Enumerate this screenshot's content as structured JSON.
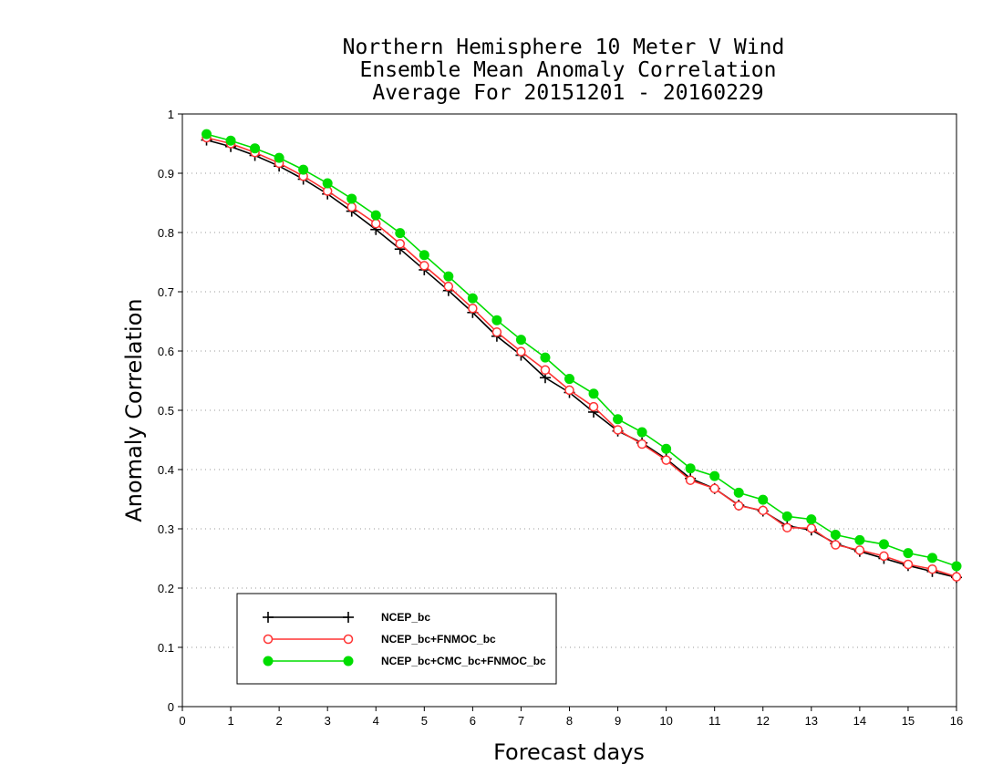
{
  "chart_data": {
    "type": "line",
    "title": [
      "Northern Hemisphere 10 Meter V Wind",
      "Ensemble Mean Anomaly Correlation",
      "Average For 20151201 - 20160229"
    ],
    "xlabel": "Forecast days",
    "ylabel": "Anomaly Correlation",
    "xlim": [
      0,
      16
    ],
    "ylim": [
      0,
      1
    ],
    "xticks": [
      "0",
      "1",
      "2",
      "3",
      "4",
      "5",
      "6",
      "7",
      "8",
      "9",
      "10",
      "11",
      "12",
      "13",
      "14",
      "15",
      "16"
    ],
    "yticks": [
      "0",
      "0.1",
      "0.2",
      "0.3",
      "0.4",
      "0.5",
      "0.6",
      "0.7",
      "0.8",
      "0.9",
      "1"
    ],
    "grid": "horizontal dotted",
    "legend_position": "bottom-left",
    "x": [
      0.5,
      1,
      1.5,
      2,
      2.5,
      3,
      3.5,
      4,
      4.5,
      5,
      5.5,
      6,
      6.5,
      7,
      7.5,
      8,
      8.5,
      9,
      9.5,
      10,
      10.5,
      11,
      11.5,
      12,
      12.5,
      13,
      13.5,
      14,
      14.5,
      15,
      15.5,
      16
    ],
    "series": [
      {
        "name": "NCEP_bc",
        "color": "#000000",
        "marker": "plus",
        "values": [
          0.956,
          0.945,
          0.93,
          0.912,
          0.89,
          0.865,
          0.836,
          0.805,
          0.772,
          0.737,
          0.702,
          0.665,
          0.625,
          0.593,
          0.555,
          0.53,
          0.497,
          0.465,
          0.445,
          0.418,
          0.385,
          0.368,
          0.34,
          0.33,
          0.305,
          0.298,
          0.275,
          0.262,
          0.25,
          0.238,
          0.228,
          0.218
        ]
      },
      {
        "name": "NCEP_bc+FNMOC_bc",
        "color": "#ff3333",
        "marker": "open-circle",
        "values": [
          0.96,
          0.95,
          0.935,
          0.917,
          0.895,
          0.87,
          0.843,
          0.815,
          0.781,
          0.744,
          0.709,
          0.672,
          0.632,
          0.599,
          0.568,
          0.534,
          0.506,
          0.467,
          0.443,
          0.416,
          0.382,
          0.368,
          0.339,
          0.331,
          0.302,
          0.301,
          0.273,
          0.264,
          0.254,
          0.24,
          0.232,
          0.219
        ]
      },
      {
        "name": "NCEP_bc+CMC_bc+FNMOC_bc",
        "color": "#00dd00",
        "marker": "filled-circle",
        "values": [
          0.966,
          0.955,
          0.942,
          0.926,
          0.906,
          0.883,
          0.857,
          0.829,
          0.799,
          0.762,
          0.726,
          0.689,
          0.652,
          0.619,
          0.589,
          0.553,
          0.528,
          0.485,
          0.463,
          0.435,
          0.402,
          0.389,
          0.361,
          0.349,
          0.321,
          0.316,
          0.29,
          0.281,
          0.274,
          0.259,
          0.251,
          0.237
        ]
      }
    ]
  }
}
